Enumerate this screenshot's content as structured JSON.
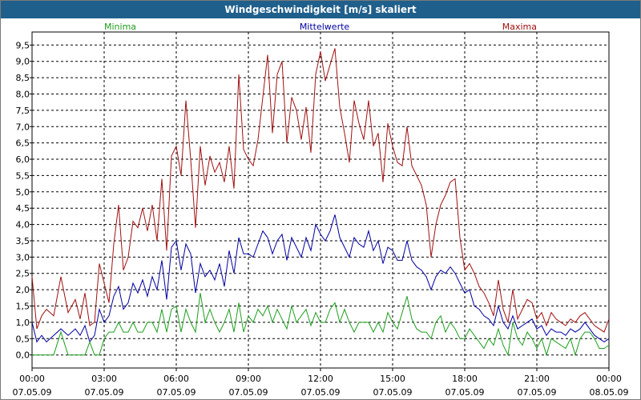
{
  "window_title": "Windgeschwindigkeit [m/s] skaliert",
  "legend": {
    "min_label": "Minima",
    "mean_label": "Mittelwerte",
    "max_label": "Maxima"
  },
  "colors": {
    "title_bg": "#1f5f8b",
    "minima": "#1e9e1e",
    "mittelwerte": "#0000a0",
    "maxima": "#a01010"
  },
  "chart_data": {
    "type": "line",
    "title": "Windgeschwindigkeit [m/s] skaliert",
    "xlabel": "",
    "ylabel": "",
    "grid": true,
    "x_ticks": [
      {
        "time": "00:00",
        "date": "07.05.09"
      },
      {
        "time": "03:00",
        "date": "07.05.09"
      },
      {
        "time": "06:00",
        "date": "07.05.09"
      },
      {
        "time": "09:00",
        "date": "07.05.09"
      },
      {
        "time": "12:00",
        "date": "07.05.09"
      },
      {
        "time": "15:00",
        "date": "07.05.09"
      },
      {
        "time": "18:00",
        "date": "07.05.09"
      },
      {
        "time": "21:00",
        "date": "07.05.09"
      },
      {
        "time": "00:00",
        "date": "08.05.09"
      }
    ],
    "y_ticks": [
      "0,0",
      "0,5",
      "1,0",
      "1,5",
      "2,0",
      "2,5",
      "3,0",
      "3,5",
      "4,0",
      "4,5",
      "5,0",
      "5,5",
      "6,0",
      "6,5",
      "7,0",
      "7,5",
      "8,0",
      "8,5",
      "9,0",
      "9,5"
    ],
    "ylim": [
      -0.4,
      9.9
    ],
    "xlim_hours": [
      0,
      24
    ],
    "series": [
      {
        "name": "Maxima",
        "color": "#a01010",
        "hours": [
          0.0,
          0.2,
          0.4,
          0.6,
          0.9,
          1.2,
          1.5,
          1.8,
          2.0,
          2.2,
          2.4,
          2.6,
          2.8,
          3.0,
          3.2,
          3.4,
          3.6,
          3.8,
          4.0,
          4.2,
          4.4,
          4.6,
          4.8,
          5.0,
          5.2,
          5.4,
          5.6,
          5.8,
          6.0,
          6.2,
          6.4,
          6.6,
          6.8,
          7.0,
          7.2,
          7.4,
          7.6,
          7.8,
          8.0,
          8.2,
          8.4,
          8.6,
          8.8,
          9.0,
          9.2,
          9.4,
          9.6,
          9.8,
          10.0,
          10.2,
          10.4,
          10.6,
          10.8,
          11.0,
          11.2,
          11.4,
          11.6,
          11.8,
          12.0,
          12.2,
          12.4,
          12.6,
          12.8,
          13.0,
          13.2,
          13.4,
          13.6,
          13.8,
          14.0,
          14.2,
          14.4,
          14.6,
          14.8,
          15.0,
          15.2,
          15.4,
          15.6,
          15.8,
          16.0,
          16.2,
          16.4,
          16.6,
          16.8,
          17.0,
          17.2,
          17.4,
          17.6,
          17.8,
          18.0,
          18.2,
          18.4,
          18.6,
          18.8,
          19.0,
          19.2,
          19.4,
          19.6,
          19.8,
          20.0,
          20.2,
          20.4,
          20.6,
          20.8,
          21.0,
          21.2,
          21.4,
          21.6,
          21.8,
          22.0,
          22.2,
          22.4,
          22.6,
          22.8,
          23.0,
          23.2,
          23.4,
          23.6,
          23.8,
          24.0
        ],
        "values": [
          2.4,
          0.8,
          1.2,
          1.4,
          1.2,
          2.4,
          1.3,
          1.7,
          1.1,
          1.9,
          0.9,
          1.0,
          2.8,
          2.2,
          1.6,
          3.4,
          4.6,
          2.6,
          3.0,
          4.1,
          3.9,
          4.5,
          3.8,
          4.6,
          3.5,
          5.4,
          3.2,
          6.1,
          6.4,
          5.5,
          7.8,
          6.0,
          3.9,
          6.4,
          5.2,
          6.1,
          5.6,
          5.9,
          5.3,
          6.4,
          5.1,
          8.6,
          6.3,
          6.0,
          5.8,
          6.6,
          7.9,
          9.2,
          6.8,
          8.6,
          9.0,
          6.5,
          7.9,
          7.5,
          6.6,
          7.6,
          6.2,
          8.6,
          9.3,
          8.4,
          8.9,
          9.4,
          7.6,
          6.8,
          5.9,
          7.8,
          7.1,
          6.6,
          7.8,
          6.4,
          6.8,
          5.3,
          7.1,
          6.4,
          5.9,
          5.8,
          7.0,
          5.8,
          5.5,
          5.2,
          4.6,
          3.0,
          4.0,
          4.6,
          4.9,
          5.3,
          5.4,
          3.6,
          2.6,
          2.8,
          2.5,
          2.1,
          1.9,
          1.6,
          1.2,
          2.3,
          1.4,
          1.0,
          2.0,
          1.1,
          1.4,
          1.7,
          1.6,
          1.1,
          1.3,
          0.9,
          1.3,
          1.1,
          1.0,
          0.9,
          1.1,
          1.0,
          1.2,
          1.3,
          1.1,
          0.9,
          0.8,
          0.7,
          1.1
        ],
        "label": "Maxima"
      },
      {
        "name": "Mittelwerte",
        "color": "#0000a0",
        "hours": [
          0.0,
          0.2,
          0.4,
          0.6,
          0.9,
          1.2,
          1.5,
          1.8,
          2.0,
          2.2,
          2.4,
          2.6,
          2.8,
          3.0,
          3.2,
          3.4,
          3.6,
          3.8,
          4.0,
          4.2,
          4.4,
          4.6,
          4.8,
          5.0,
          5.2,
          5.4,
          5.6,
          5.8,
          6.0,
          6.2,
          6.4,
          6.6,
          6.8,
          7.0,
          7.2,
          7.4,
          7.6,
          7.8,
          8.0,
          8.2,
          8.4,
          8.6,
          8.8,
          9.0,
          9.2,
          9.4,
          9.6,
          9.8,
          10.0,
          10.2,
          10.4,
          10.6,
          10.8,
          11.0,
          11.2,
          11.4,
          11.6,
          11.8,
          12.0,
          12.2,
          12.4,
          12.6,
          12.8,
          13.0,
          13.2,
          13.4,
          13.6,
          13.8,
          14.0,
          14.2,
          14.4,
          14.6,
          14.8,
          15.0,
          15.2,
          15.4,
          15.6,
          15.8,
          16.0,
          16.2,
          16.4,
          16.6,
          16.8,
          17.0,
          17.2,
          17.4,
          17.6,
          17.8,
          18.0,
          18.2,
          18.4,
          18.6,
          18.8,
          19.0,
          19.2,
          19.4,
          19.6,
          19.8,
          20.0,
          20.2,
          20.4,
          20.6,
          20.8,
          21.0,
          21.2,
          21.4,
          21.6,
          21.8,
          22.0,
          22.2,
          22.4,
          22.6,
          22.8,
          23.0,
          23.2,
          23.4,
          23.6,
          23.8,
          24.0
        ],
        "values": [
          1.0,
          0.4,
          0.6,
          0.4,
          0.6,
          0.8,
          0.6,
          0.8,
          0.6,
          0.9,
          0.4,
          0.6,
          1.4,
          1.0,
          1.2,
          1.8,
          2.1,
          1.4,
          1.6,
          2.2,
          1.9,
          2.3,
          1.8,
          2.4,
          2.0,
          2.9,
          1.7,
          3.3,
          3.5,
          2.6,
          3.4,
          3.1,
          1.9,
          2.8,
          2.4,
          2.6,
          2.3,
          2.8,
          2.1,
          3.2,
          2.5,
          3.6,
          3.1,
          3.1,
          3.0,
          3.4,
          3.8,
          3.6,
          3.1,
          3.5,
          3.7,
          2.9,
          3.6,
          3.3,
          3.0,
          3.6,
          3.2,
          4.0,
          3.7,
          3.5,
          3.8,
          4.3,
          3.6,
          3.3,
          3.0,
          3.6,
          3.4,
          3.3,
          3.8,
          3.2,
          3.5,
          2.8,
          3.3,
          3.2,
          2.9,
          2.9,
          3.5,
          2.9,
          2.7,
          2.6,
          2.4,
          2.0,
          2.4,
          2.6,
          2.5,
          2.7,
          2.5,
          2.2,
          1.9,
          2.0,
          1.5,
          1.4,
          1.2,
          1.1,
          0.9,
          1.5,
          1.0,
          0.8,
          1.2,
          0.8,
          0.9,
          1.0,
          1.1,
          0.8,
          0.9,
          0.6,
          0.8,
          0.7,
          0.7,
          0.6,
          0.8,
          0.7,
          0.8,
          1.0,
          0.8,
          0.6,
          0.5,
          0.4,
          0.5
        ],
        "label": "Mittelwerte"
      },
      {
        "name": "Minima",
        "color": "#1e9e1e",
        "hours": [
          0.0,
          0.2,
          0.4,
          0.6,
          0.9,
          1.2,
          1.5,
          1.8,
          2.0,
          2.2,
          2.4,
          2.6,
          2.8,
          3.0,
          3.2,
          3.4,
          3.6,
          3.8,
          4.0,
          4.2,
          4.4,
          4.6,
          4.8,
          5.0,
          5.2,
          5.4,
          5.6,
          5.8,
          6.0,
          6.2,
          6.4,
          6.6,
          6.8,
          7.0,
          7.2,
          7.4,
          7.6,
          7.8,
          8.0,
          8.2,
          8.4,
          8.6,
          8.8,
          9.0,
          9.2,
          9.4,
          9.6,
          9.8,
          10.0,
          10.2,
          10.4,
          10.6,
          10.8,
          11.0,
          11.2,
          11.4,
          11.6,
          11.8,
          12.0,
          12.2,
          12.4,
          12.6,
          12.8,
          13.0,
          13.2,
          13.4,
          13.6,
          13.8,
          14.0,
          14.2,
          14.4,
          14.6,
          14.8,
          15.0,
          15.2,
          15.4,
          15.6,
          15.8,
          16.0,
          16.2,
          16.4,
          16.6,
          16.8,
          17.0,
          17.2,
          17.4,
          17.6,
          17.8,
          18.0,
          18.2,
          18.4,
          18.6,
          18.8,
          19.0,
          19.2,
          19.4,
          19.6,
          19.8,
          20.0,
          20.2,
          20.4,
          20.6,
          20.8,
          21.0,
          21.2,
          21.4,
          21.6,
          21.8,
          22.0,
          22.2,
          22.4,
          22.6,
          22.8,
          23.0,
          23.2,
          23.4,
          23.6,
          23.8,
          24.0
        ],
        "values": [
          0.0,
          0.0,
          0.0,
          0.0,
          0.0,
          0.7,
          0.0,
          0.0,
          0.0,
          0.0,
          0.4,
          0.0,
          0.0,
          0.5,
          0.7,
          0.7,
          1.0,
          0.7,
          0.7,
          1.0,
          0.7,
          0.7,
          1.0,
          1.0,
          0.7,
          1.4,
          0.7,
          1.4,
          1.5,
          0.7,
          1.4,
          1.0,
          0.7,
          1.9,
          1.0,
          1.4,
          1.0,
          0.7,
          1.0,
          1.4,
          0.7,
          1.6,
          0.7,
          1.2,
          1.0,
          1.4,
          1.2,
          1.5,
          1.0,
          1.4,
          1.1,
          0.8,
          1.5,
          1.0,
          1.2,
          1.4,
          0.9,
          1.3,
          1.0,
          1.0,
          1.4,
          1.6,
          1.0,
          1.4,
          1.0,
          0.7,
          1.0,
          1.0,
          1.0,
          0.7,
          1.0,
          0.7,
          1.3,
          1.0,
          0.8,
          1.3,
          1.8,
          1.1,
          0.8,
          0.7,
          0.7,
          0.5,
          1.0,
          1.2,
          0.7,
          1.0,
          0.8,
          0.5,
          0.5,
          0.8,
          0.6,
          0.4,
          0.2,
          0.5,
          0.3,
          0.8,
          0.3,
          0.0,
          1.0,
          0.5,
          0.3,
          0.7,
          0.5,
          0.2,
          0.5,
          0.0,
          0.5,
          0.4,
          0.3,
          0.2,
          0.5,
          0.0,
          0.5,
          0.7,
          0.7,
          0.5,
          0.2,
          0.2,
          0.3
        ],
        "label": "Minima"
      }
    ]
  }
}
